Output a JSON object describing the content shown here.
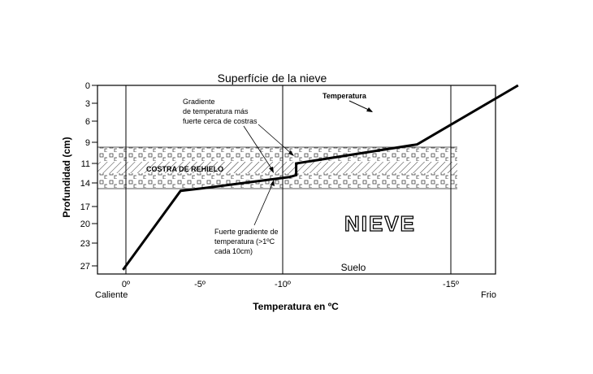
{
  "title": "Superfície de la nieve",
  "y_axis": {
    "label": "Profundidad (cm)",
    "ticks": [
      "0",
      "3",
      "6",
      "9",
      "11",
      "14",
      "17",
      "20",
      "23",
      "27"
    ]
  },
  "x_axis": {
    "label": "Temperatura en ºC",
    "ticks": [
      "0º",
      "-5º",
      "-10º",
      "-15º"
    ],
    "left_end": "Caliente",
    "right_end": "Frio"
  },
  "layers": {
    "crust_label": "COSTRA DE REHIELO",
    "snow_label": "NIEVE",
    "ground_label": "Suelo"
  },
  "annotations": {
    "temperature_label": "Temperatura",
    "upper_note": [
      "Gradiente",
      "de temperatura más",
      "fuerte cerca de costras"
    ],
    "lower_note": [
      "Fuerte gradiente de",
      "temperatura (>1ºC",
      "cada 10cm)"
    ]
  },
  "chart_data": {
    "type": "line",
    "x_unit": "ºC",
    "y_unit": "cm",
    "series": [
      {
        "name": "Temperatura",
        "points": [
          [
            0.2,
            27.7
          ],
          [
            -3.7,
            15
          ],
          [
            -5.1,
            14.7
          ],
          [
            -10.2,
            13.1
          ],
          [
            -10.4,
            12.8
          ],
          [
            -10.4,
            11.0
          ],
          [
            -14.0,
            9.2
          ],
          [
            -17.0,
            0
          ]
        ]
      }
    ]
  }
}
